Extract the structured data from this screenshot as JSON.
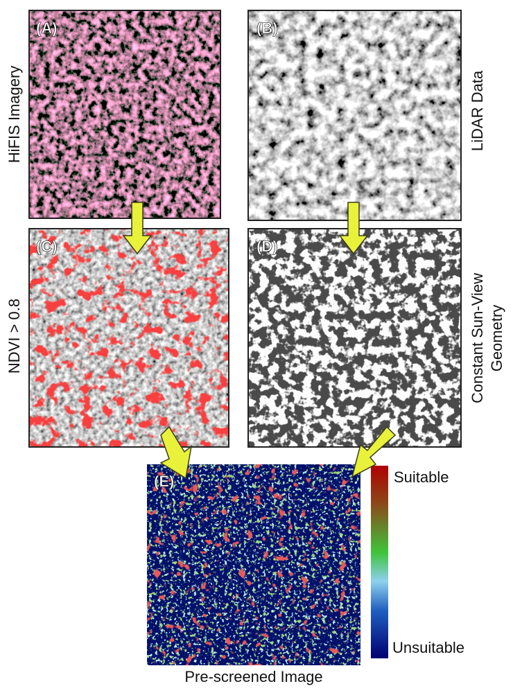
{
  "panels": [
    {
      "label": "(A)",
      "caption": "HiFIS Imagery"
    },
    {
      "label": "(B)",
      "caption": "LiDAR Data"
    },
    {
      "label": "(C)",
      "caption": "NDVI > 0.8"
    },
    {
      "label": "(D)",
      "caption_lines": [
        "Constant Sun-View",
        "Geometry"
      ]
    },
    {
      "label": "(E)",
      "caption": "Pre-screened Image"
    }
  ],
  "colorbar": {
    "top": "Suitable",
    "bottom": "Unsuitable"
  }
}
